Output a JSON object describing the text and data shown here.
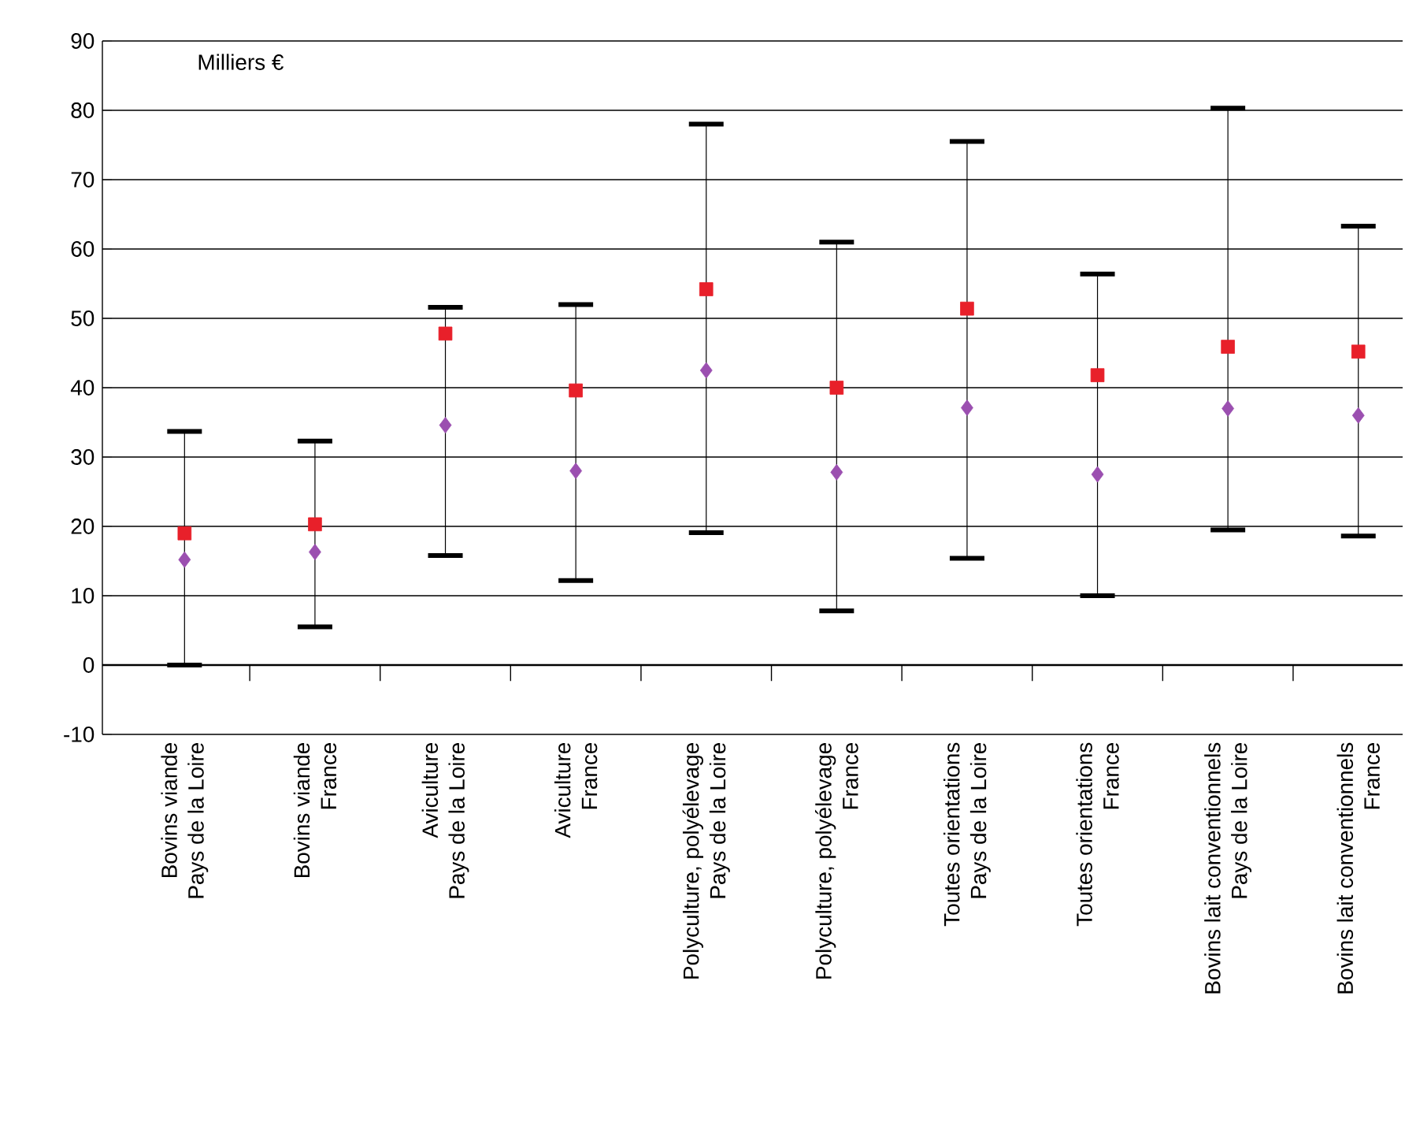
{
  "chart_data": {
    "type": "scatter",
    "annotations": [
      "Milliers €"
    ],
    "categories": [
      "Bovins viande\nPays de la Loire",
      "Bovins viande\nFrance",
      "Aviculture\nPays de la Loire",
      "Aviculture\nFrance",
      "Polyculture, polyélevage\nPays de la Loire",
      "Polyculture, polyélevage\nFrance",
      "Toutes orientations\nPays de la Loire",
      "Toutes orientations\nFrance",
      "Bovins lait conventionnels\nPays de la Loire",
      "Bovins lait conventionnels\nFrance"
    ],
    "ylim": [
      -10,
      90
    ],
    "yticks": [
      -10,
      0,
      10,
      20,
      30,
      40,
      50,
      60,
      70,
      80,
      90
    ],
    "grid": "y",
    "ref_lines": [
      {
        "axis": "y",
        "value": 0,
        "color": "#000000"
      }
    ],
    "series": [
      {
        "color": "#e8202a",
        "marker": "square",
        "values": [
          19,
          20.3,
          47.8,
          39.6,
          54.2,
          40,
          51.4,
          41.8,
          45.9,
          45.2
        ],
        "errors": [
          [
            0,
            33.7
          ],
          [
            5.5,
            32.3
          ],
          [
            15.8,
            51.6
          ],
          [
            12.2,
            52
          ],
          [
            19.1,
            78
          ],
          [
            7.8,
            61
          ],
          [
            15.4,
            75.5
          ],
          [
            10,
            56.4
          ],
          [
            19.5,
            80.3
          ],
          [
            18.6,
            63.3
          ]
        ]
      },
      {
        "color": "#9b4fb0",
        "marker": "diamond",
        "values": [
          15.2,
          16.3,
          34.6,
          28,
          42.5,
          27.8,
          37.1,
          27.5,
          37,
          36
        ]
      }
    ]
  }
}
